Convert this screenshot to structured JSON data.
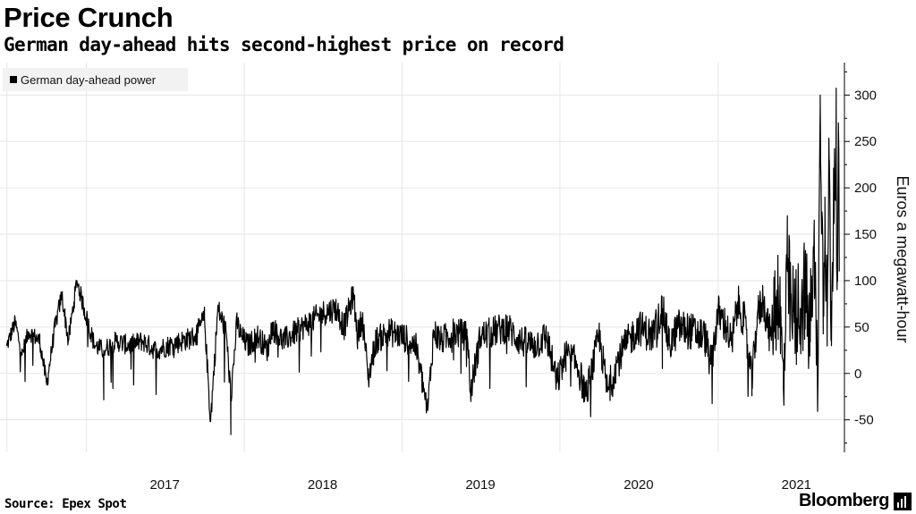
{
  "header": {
    "title": "Price Crunch",
    "subtitle": "German day-ahead hits second-highest price on record"
  },
  "footer": {
    "source": "Source: Epex Spot",
    "brand": "Bloomberg"
  },
  "chart_data": {
    "type": "line",
    "title": "Price Crunch",
    "subtitle": "German day-ahead hits second-highest price on record",
    "xlabel": "",
    "ylabel": "Euros a megawatt-hour",
    "ylim": [
      -85,
      335
    ],
    "y_ticks": [
      300,
      250,
      200,
      150,
      100,
      50,
      0,
      -50
    ],
    "x_ticks": [
      "2017",
      "2018",
      "2019",
      "2020",
      "2021"
    ],
    "grid": true,
    "legend_position": "top-left",
    "colors": {
      "line": "#000000",
      "grid": "#e6e6e6",
      "legend_bg": "#f2f2f2"
    },
    "series": [
      {
        "name": "German day-ahead power",
        "x": [
          "2016-07-01",
          "2016-07-20",
          "2016-08-05",
          "2016-08-20",
          "2016-09-15",
          "2016-10-01",
          "2016-10-20",
          "2016-11-05",
          "2016-11-20",
          "2016-12-10",
          "2017-01-01",
          "2017-01-20",
          "2017-02-10",
          "2017-03-10",
          "2017-04-10",
          "2017-05-10",
          "2017-06-10",
          "2017-07-10",
          "2017-08-10",
          "2017-09-10",
          "2017-10-01",
          "2017-10-15",
          "2017-11-01",
          "2017-11-20",
          "2017-12-01",
          "2017-12-15",
          "2017-12-25",
          "2018-01-10",
          "2018-02-01",
          "2018-02-25",
          "2018-03-05",
          "2018-04-01",
          "2018-05-01",
          "2018-06-01",
          "2018-07-01",
          "2018-08-01",
          "2018-08-20",
          "2018-09-10",
          "2018-09-20",
          "2018-10-01",
          "2018-10-15",
          "2018-11-01",
          "2018-12-01",
          "2019-01-01",
          "2019-02-01",
          "2019-03-01",
          "2019-03-15",
          "2019-04-01",
          "2019-05-01",
          "2019-06-01",
          "2019-06-08",
          "2019-07-01",
          "2019-08-01",
          "2019-09-01",
          "2019-10-01",
          "2019-11-01",
          "2019-12-01",
          "2019-12-25",
          "2020-01-15",
          "2020-02-10",
          "2020-03-01",
          "2020-04-01",
          "2020-04-20",
          "2020-05-10",
          "2020-06-01",
          "2020-07-01",
          "2020-08-01",
          "2020-08-25",
          "2020-09-10",
          "2020-10-01",
          "2020-11-01",
          "2020-12-01",
          "2020-12-15",
          "2021-01-01",
          "2021-01-20",
          "2021-02-01",
          "2021-02-15",
          "2021-03-01",
          "2021-03-20",
          "2021-04-01",
          "2021-04-15",
          "2021-05-01",
          "2021-05-20",
          "2021-06-01",
          "2021-06-10",
          "2021-06-20",
          "2021-07-01",
          "2021-07-10",
          "2021-07-20",
          "2021-08-01",
          "2021-08-10",
          "2021-08-20",
          "2021-08-25",
          "2021-09-01",
          "2021-09-05",
          "2021-09-10",
          "2021-09-15",
          "2021-09-20",
          "2021-09-25",
          "2021-10-01",
          "2021-10-03",
          "2021-10-06",
          "2021-10-08"
        ],
        "values": [
          30,
          55,
          20,
          45,
          35,
          -12,
          50,
          85,
          35,
          100,
          60,
          30,
          25,
          35,
          30,
          35,
          25,
          30,
          35,
          40,
          60,
          -52,
          70,
          45,
          -25,
          55,
          40,
          30,
          40,
          25,
          50,
          35,
          45,
          55,
          65,
          70,
          50,
          85,
          40,
          60,
          -5,
          35,
          45,
          40,
          30,
          -40,
          45,
          35,
          45,
          40,
          -20,
          40,
          45,
          50,
          35,
          30,
          40,
          -10,
          20,
          10,
          -25,
          40,
          -20,
          10,
          30,
          50,
          40,
          70,
          30,
          50,
          45,
          40,
          10,
          65,
          50,
          30,
          75,
          60,
          -10,
          60,
          80,
          40,
          95,
          -15,
          110,
          60,
          60,
          70,
          90,
          40,
          130,
          -5,
          300,
          80,
          190,
          50,
          230,
          30,
          210,
          245,
          110,
          270,
          110
        ]
      }
    ]
  }
}
